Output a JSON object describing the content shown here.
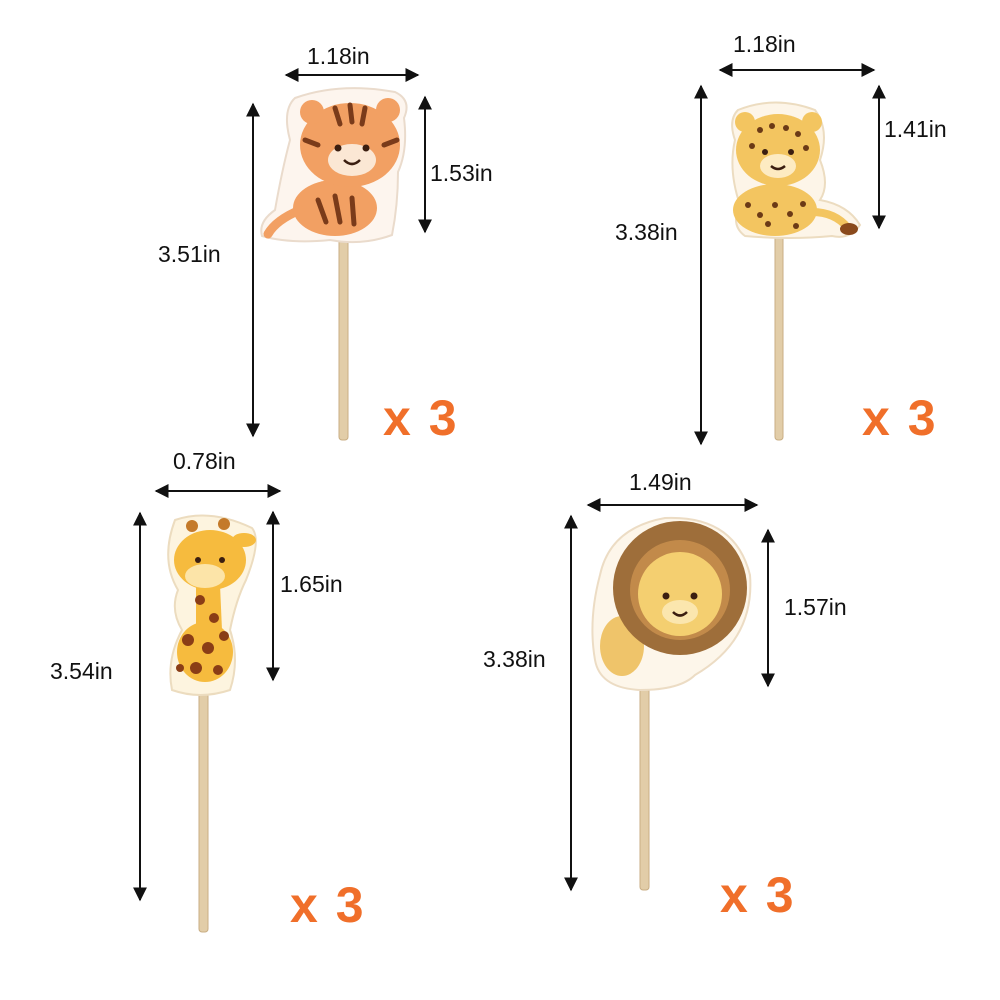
{
  "toppers": [
    {
      "animal": "tiger",
      "width": "1.18in",
      "head_height": "1.53in",
      "total_height": "3.51in",
      "quantity": "x 3"
    },
    {
      "animal": "leopard",
      "width": "1.18in",
      "head_height": "1.41in",
      "total_height": "3.38in",
      "quantity": "x 3"
    },
    {
      "animal": "giraffe",
      "width": "0.78in",
      "head_height": "1.65in",
      "total_height": "3.54in",
      "quantity": "x 3"
    },
    {
      "animal": "lion",
      "width": "1.49in",
      "head_height": "1.57in",
      "total_height": "3.38in",
      "quantity": "x 3"
    }
  ],
  "colors": {
    "background": "#ffffff",
    "quantity_text": "#f06f2a",
    "dimension_arrow": "#111111",
    "stick": "#e2cda8",
    "tiger": "#f2a063",
    "leopard": "#f3c560",
    "giraffe": "#f6bb3e",
    "lion_mane": "#9e6e3a",
    "lion_face": "#f4cf70"
  }
}
